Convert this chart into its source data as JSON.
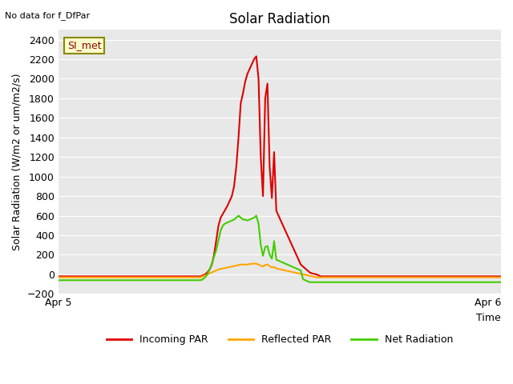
{
  "title": "Solar Radiation",
  "xlabel": "Time",
  "ylabel": "Solar Radiation (W/m2 or um/m2/s)",
  "top_left_text": "No data for f_DfPar",
  "legend_label": "SI_met",
  "ylim": [
    -200,
    2500
  ],
  "yticks": [
    -200,
    0,
    200,
    400,
    600,
    800,
    1000,
    1200,
    1400,
    1600,
    1800,
    2000,
    2200,
    2400
  ],
  "xlim_label_left": "Apr 5",
  "xlim_label_right": "Apr 6",
  "bg_color": "#e8e8e8",
  "line_incoming_color": "#dd0000",
  "line_reflected_color": "#ffa500",
  "line_net_color": "#44cc00",
  "legend_items": [
    "Incoming PAR",
    "Reflected PAR",
    "Net Radiation"
  ],
  "n_points": 200,
  "incoming_par": [
    -20,
    -20,
    -20,
    -20,
    -20,
    -20,
    -20,
    -20,
    -20,
    -20,
    -20,
    -20,
    -20,
    -20,
    -20,
    -20,
    -20,
    -20,
    -20,
    -20,
    -20,
    -20,
    -20,
    -20,
    -20,
    -20,
    -20,
    -20,
    -20,
    -20,
    -20,
    -20,
    -20,
    -20,
    -20,
    -20,
    -20,
    -20,
    -20,
    -20,
    -20,
    -20,
    -20,
    -20,
    -20,
    -20,
    -20,
    -20,
    -20,
    -20,
    -20,
    -20,
    -20,
    -20,
    -20,
    -20,
    -20,
    -20,
    -20,
    -20,
    -20,
    -20,
    -20,
    -20,
    -20,
    -10,
    0,
    20,
    50,
    100,
    200,
    350,
    500,
    580,
    620,
    660,
    700,
    750,
    800,
    900,
    1100,
    1400,
    1750,
    1850,
    1970,
    2050,
    2100,
    2150,
    2200,
    2230,
    2000,
    1200,
    800,
    1800,
    1950,
    1100,
    780,
    1250,
    650,
    600,
    550,
    500,
    450,
    400,
    350,
    300,
    250,
    200,
    150,
    100,
    80,
    60,
    40,
    20,
    10,
    5,
    0,
    -10,
    -20,
    -20,
    -20,
    -20,
    -20,
    -20,
    -20,
    -20,
    -20,
    -20,
    -20,
    -20,
    -20,
    -20,
    -20,
    -20,
    -20,
    -20,
    -20,
    -20,
    -20,
    -20,
    -20,
    -20,
    -20,
    -20,
    -20,
    -20,
    -20,
    -20,
    -20,
    -20,
    -20,
    -20,
    -20,
    -20,
    -20,
    -20,
    -20,
    -20,
    -20,
    -20,
    -20,
    -20,
    -20,
    -20,
    -20,
    -20,
    -20,
    -20,
    -20,
    -20,
    -20,
    -20,
    -20,
    -20,
    -20,
    -20,
    -20,
    -20,
    -20,
    -20,
    -20,
    -20,
    -20,
    -20,
    -20,
    -20,
    -20,
    -20,
    -20,
    -20,
    -20,
    -20,
    -20,
    -20,
    -20,
    -20,
    -20,
    -20,
    -20,
    -20
  ],
  "reflected_par": [
    -30,
    -30,
    -30,
    -30,
    -30,
    -30,
    -30,
    -30,
    -30,
    -30,
    -30,
    -30,
    -30,
    -30,
    -30,
    -30,
    -30,
    -30,
    -30,
    -30,
    -30,
    -30,
    -30,
    -30,
    -30,
    -30,
    -30,
    -30,
    -30,
    -30,
    -30,
    -30,
    -30,
    -30,
    -30,
    -30,
    -30,
    -30,
    -30,
    -30,
    -30,
    -30,
    -30,
    -30,
    -30,
    -30,
    -30,
    -30,
    -30,
    -30,
    -30,
    -30,
    -30,
    -30,
    -30,
    -30,
    -30,
    -30,
    -30,
    -30,
    -30,
    -30,
    -30,
    -30,
    -30,
    -20,
    -10,
    0,
    10,
    20,
    30,
    40,
    50,
    55,
    60,
    65,
    70,
    75,
    80,
    85,
    90,
    95,
    100,
    100,
    100,
    100,
    105,
    108,
    110,
    110,
    100,
    90,
    80,
    95,
    100,
    85,
    70,
    75,
    60,
    55,
    50,
    45,
    40,
    35,
    30,
    25,
    20,
    15,
    10,
    5,
    0,
    -5,
    -10,
    -15,
    -20,
    -25,
    -30,
    -30,
    -30,
    -30,
    -30,
    -30,
    -30,
    -30,
    -30,
    -30,
    -30,
    -30,
    -30,
    -30,
    -30,
    -30,
    -30,
    -30,
    -30,
    -30,
    -30,
    -30,
    -30,
    -30,
    -30,
    -30,
    -30,
    -30,
    -30,
    -30,
    -30,
    -30,
    -30,
    -30,
    -30,
    -30,
    -30,
    -30,
    -30,
    -30,
    -30,
    -30,
    -30,
    -30,
    -30,
    -30,
    -30,
    -30,
    -30,
    -30,
    -30,
    -30,
    -30,
    -30,
    -30,
    -30,
    -30,
    -30,
    -30,
    -30,
    -30,
    -30,
    -30,
    -30,
    -30,
    -30,
    -30,
    -30,
    -30,
    -30,
    -30,
    -30,
    -30,
    -30,
    -30,
    -30,
    -30,
    -30,
    -30,
    -30,
    -30,
    -30,
    -30,
    -30
  ],
  "net_radiation": [
    -60,
    -60,
    -60,
    -60,
    -60,
    -60,
    -60,
    -60,
    -60,
    -60,
    -60,
    -60,
    -60,
    -60,
    -60,
    -60,
    -60,
    -60,
    -60,
    -60,
    -60,
    -60,
    -60,
    -60,
    -60,
    -60,
    -60,
    -60,
    -60,
    -60,
    -60,
    -60,
    -60,
    -60,
    -60,
    -60,
    -60,
    -60,
    -60,
    -60,
    -60,
    -60,
    -60,
    -60,
    -60,
    -60,
    -60,
    -60,
    -60,
    -60,
    -60,
    -60,
    -60,
    -60,
    -60,
    -60,
    -60,
    -60,
    -60,
    -60,
    -60,
    -60,
    -60,
    -60,
    -60,
    -50,
    -30,
    0,
    50,
    110,
    180,
    250,
    350,
    450,
    500,
    520,
    530,
    540,
    550,
    560,
    580,
    600,
    580,
    560,
    560,
    550,
    560,
    570,
    580,
    600,
    520,
    300,
    190,
    280,
    290,
    200,
    160,
    340,
    150,
    140,
    130,
    120,
    110,
    100,
    90,
    80,
    70,
    60,
    50,
    40,
    -50,
    -60,
    -70,
    -80,
    -80,
    -80,
    -80,
    -80,
    -80,
    -80,
    -80,
    -80,
    -80,
    -80,
    -80,
    -80,
    -80,
    -80,
    -80,
    -80,
    -80,
    -80,
    -80,
    -80,
    -80,
    -80,
    -80,
    -80,
    -80,
    -80,
    -80,
    -80,
    -80,
    -80,
    -80,
    -80,
    -80,
    -80,
    -80,
    -80,
    -80,
    -80,
    -80,
    -80,
    -80,
    -80,
    -80,
    -80,
    -80,
    -80,
    -80,
    -80,
    -80,
    -80,
    -80,
    -80,
    -80,
    -80,
    -80,
    -80,
    -80,
    -80,
    -80,
    -80,
    -80,
    -80,
    -80,
    -80,
    -80,
    -80,
    -80,
    -80,
    -80,
    -80,
    -80,
    -80,
    -80,
    -80,
    -80,
    -80,
    -80,
    -80,
    -80,
    -80,
    -80,
    -80,
    -80,
    -80,
    -80,
    -80
  ]
}
